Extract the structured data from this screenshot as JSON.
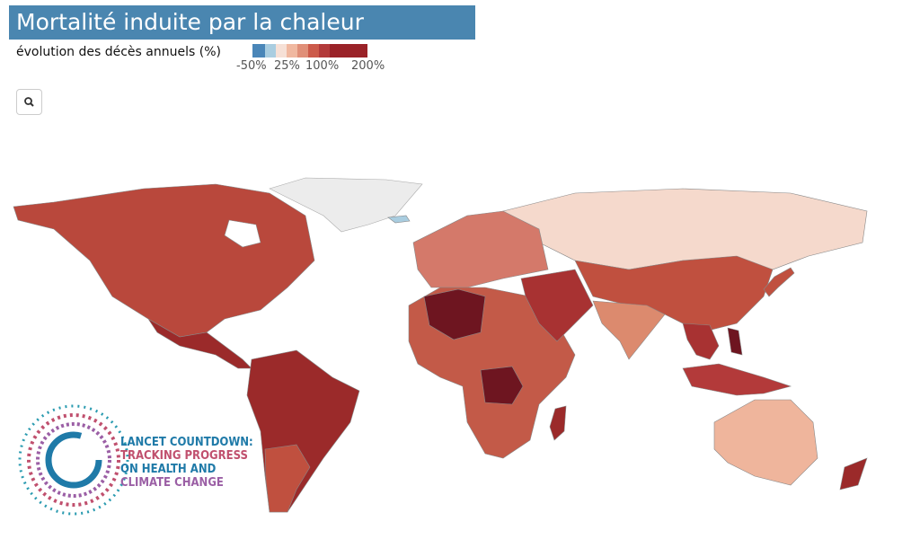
{
  "header": {
    "title": "Mortalité induite par la chaleur"
  },
  "legend": {
    "label": "évolution des décès annuels (%)",
    "colors": [
      "#4a86b8",
      "#a9cde0",
      "#f6e0d6",
      "#f0b8a0",
      "#e08f78",
      "#cc5a4a",
      "#b33a3a",
      "#9a2228"
    ],
    "ticks": [
      "-50%",
      "25%",
      "100%",
      "200%"
    ]
  },
  "logo": {
    "lines": [
      "LANCET COUNTDOWN:",
      "TRACKING PROGRESS",
      "ON HEALTH AND",
      "CLIMATE CHANGE"
    ]
  }
}
